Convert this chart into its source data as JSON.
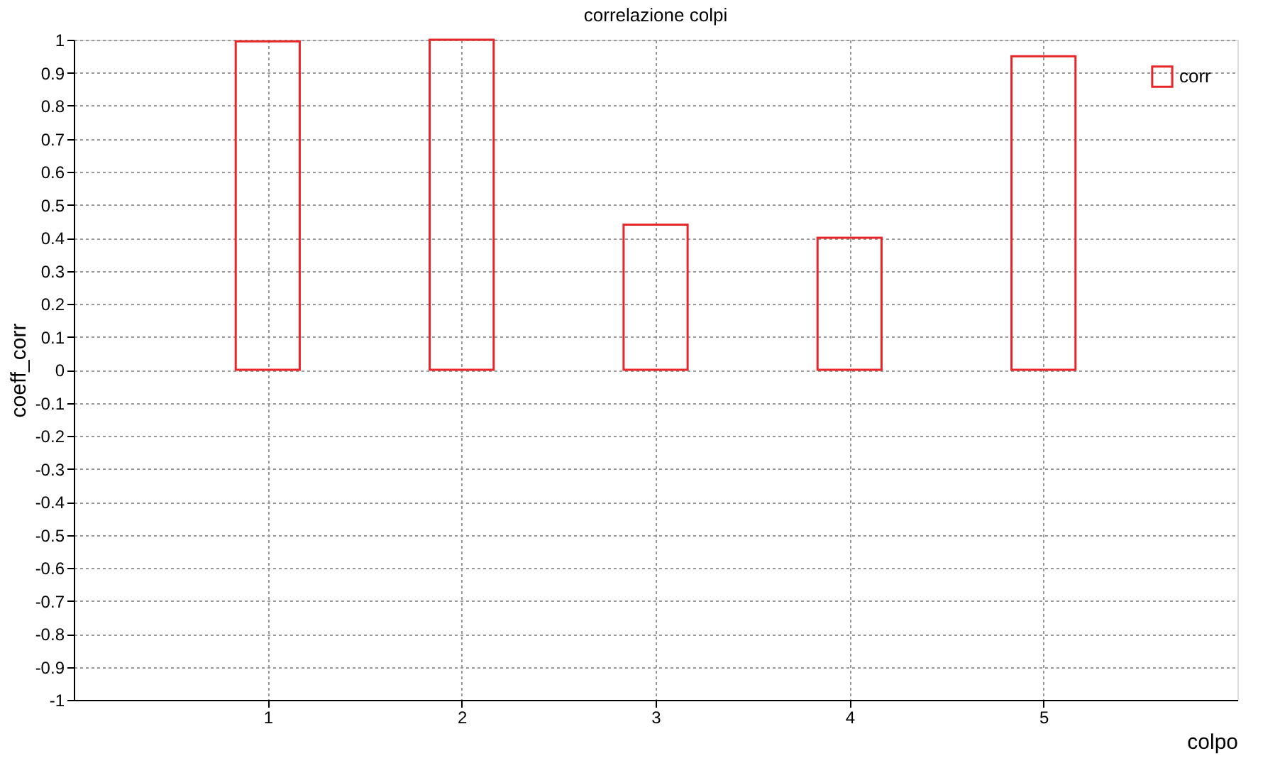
{
  "chart_data": {
    "type": "bar",
    "title": "correlazione colpi",
    "xlabel": "colpo",
    "ylabel": "coeff_corr",
    "x": [
      1,
      2,
      3,
      4,
      5
    ],
    "series": [
      {
        "name": "corr",
        "color": "#e8262a",
        "values": [
          0.995,
          1.0,
          0.44,
          0.4,
          0.95
        ]
      }
    ],
    "xlim": [
      0,
      6
    ],
    "xticks": [
      1,
      2,
      3,
      4,
      5
    ],
    "ylim": [
      -1,
      1
    ],
    "yticks": [
      -1,
      -0.9,
      -0.8,
      -0.7,
      -0.6,
      -0.5,
      -0.4,
      -0.3,
      -0.2,
      -0.1,
      0,
      0.1,
      0.2,
      0.3,
      0.4,
      0.5,
      0.6,
      0.7,
      0.8,
      0.9,
      1
    ],
    "grid": true,
    "legend": "top right"
  }
}
